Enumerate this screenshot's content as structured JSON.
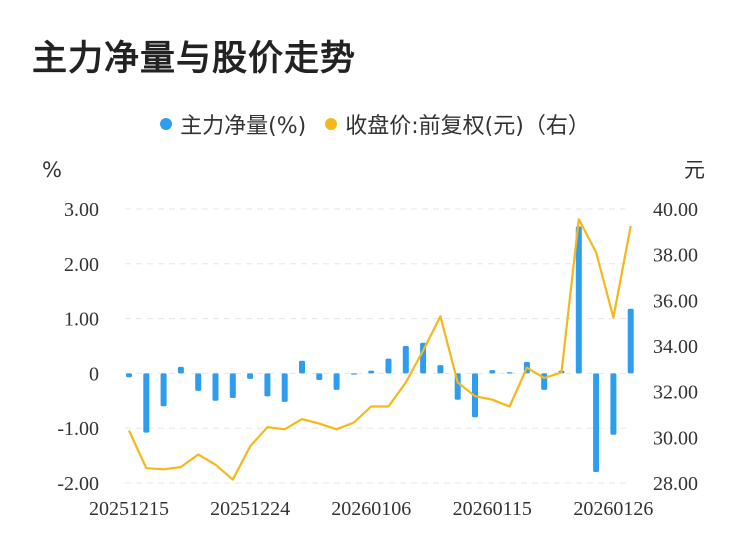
{
  "title": "主力净量与股价走势",
  "legend": {
    "bar_label": "主力净量(%)",
    "line_label": "收盘价:前复权(元)（右）"
  },
  "colors": {
    "bar": "#2e9df0",
    "line": "#f5b71a"
  },
  "chart_data": {
    "type": "bar+line",
    "left_unit": "%",
    "right_unit": "元",
    "left_ticks": [
      "3.00",
      "2.00",
      "1.00",
      "0",
      "-1.00",
      "-2.00"
    ],
    "right_ticks": [
      "40.00",
      "38.00",
      "36.00",
      "34.00",
      "32.00",
      "30.00",
      "28.00"
    ],
    "ylim_left": [
      -2,
      3
    ],
    "ylim_right": [
      28,
      40
    ],
    "grid": true,
    "x_tick_labels": [
      "20251215",
      "20251224",
      "20260106",
      "20260115",
      "20260126"
    ],
    "x_tick_index": [
      0,
      7,
      14,
      21,
      28
    ],
    "series": [
      {
        "name": "主力净量(%)",
        "type": "bar",
        "values": [
          -0.07,
          -1.08,
          -0.6,
          0.12,
          -0.32,
          -0.5,
          -0.45,
          -0.1,
          -0.42,
          -0.52,
          0.23,
          -0.12,
          -0.3,
          0.0,
          0.05,
          0.27,
          0.5,
          0.56,
          0.15,
          -0.48,
          -0.8,
          0.06,
          0.02,
          0.21,
          -0.3,
          0.05,
          2.68,
          -1.8,
          -1.12,
          1.18
        ]
      },
      {
        "name": "收盘价:前复权(元)（右）",
        "type": "line",
        "values": [
          30.3,
          28.65,
          28.6,
          28.7,
          29.25,
          28.8,
          28.15,
          29.6,
          30.45,
          30.35,
          30.8,
          30.6,
          30.35,
          30.65,
          31.35,
          31.35,
          32.4,
          33.8,
          35.3,
          32.4,
          31.8,
          31.65,
          31.35,
          33.05,
          32.6,
          32.85,
          39.55,
          38.1,
          35.25,
          39.25
        ]
      }
    ]
  }
}
